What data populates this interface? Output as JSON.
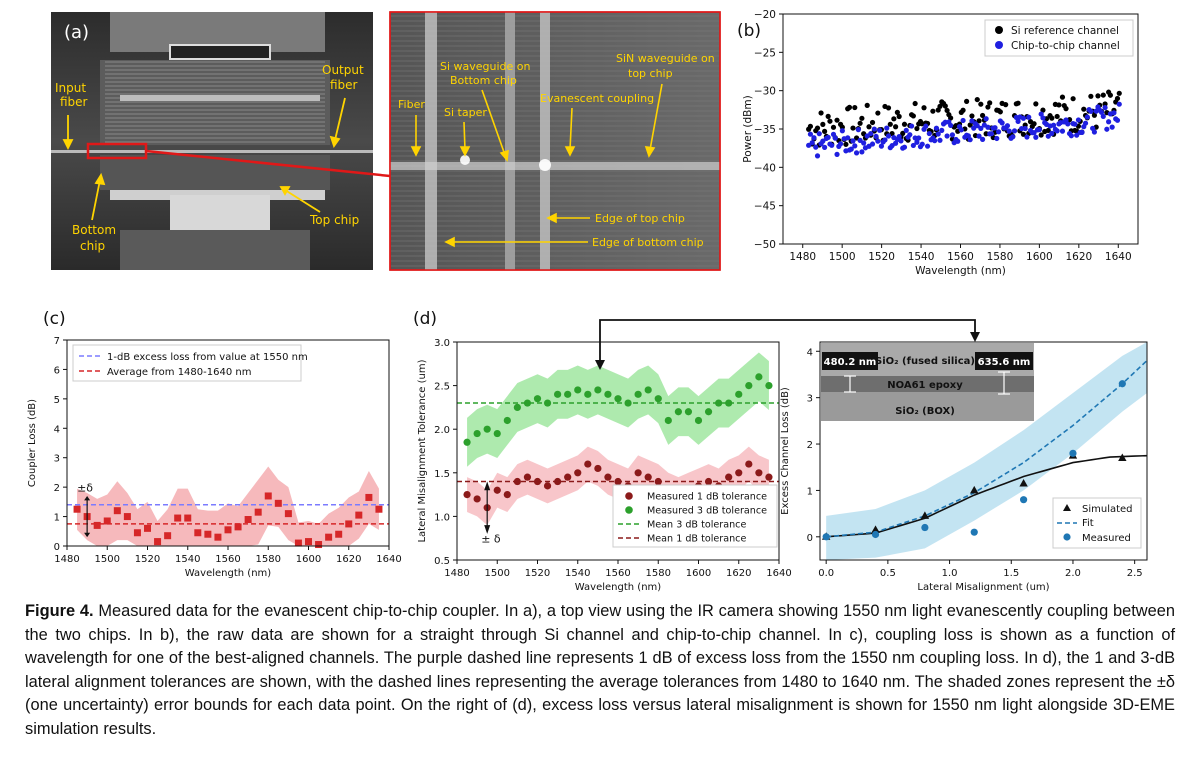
{
  "panel_a": {
    "label": "(a)",
    "annotations": {
      "input_fiber": [
        "Input",
        "fiber"
      ],
      "output_fiber": [
        "Output",
        "fiber"
      ],
      "bottom_chip": [
        "Bottom",
        "chip"
      ],
      "top_chip": "Top chip"
    },
    "zoom": {
      "fiber": "Fiber",
      "si_waveguide": [
        "Si waveguide on",
        "Bottom chip"
      ],
      "si_taper": "Si taper",
      "sin_waveguide": [
        "SiN waveguide on",
        "top chip"
      ],
      "evanescent": "Evanescent coupling",
      "edge_top": "Edge of top chip",
      "edge_bottom": "Edge of bottom chip"
    }
  },
  "chart_data": [
    {
      "id": "b",
      "type": "scatter",
      "panel_label": "(b)",
      "xlabel": "Wavelength (nm)",
      "ylabel": "Power (dBm)",
      "xlim": [
        1470,
        1650
      ],
      "ylim": [
        -50,
        -20
      ],
      "xticks": [
        1480,
        1500,
        1520,
        1540,
        1560,
        1580,
        1600,
        1620,
        1640
      ],
      "yticks": [
        -50,
        -45,
        -40,
        -35,
        -30,
        -25,
        -20
      ],
      "legend_position": "top-right",
      "series": [
        {
          "name": "Si reference channel",
          "color": "#000000",
          "x": [
            1482,
            1500,
            1520,
            1540,
            1560,
            1580,
            1600,
            1620,
            1640
          ],
          "y": [
            -35,
            -34.7,
            -34.3,
            -34,
            -33.8,
            -33.6,
            -33.2,
            -33,
            -32.5
          ],
          "spread": 2.6
        },
        {
          "name": "Chip-to-chip channel",
          "color": "#1f1fe0",
          "x": [
            1482,
            1500,
            1520,
            1540,
            1560,
            1580,
            1600,
            1620,
            1640
          ],
          "y": [
            -37.3,
            -36.8,
            -36.2,
            -35.8,
            -35.4,
            -35,
            -34.6,
            -34.2,
            -33.2
          ],
          "spread": 1.6
        }
      ]
    },
    {
      "id": "c",
      "type": "scatter",
      "panel_label": "(c)",
      "xlabel": "Wavelength (nm)",
      "ylabel": "Coupler Loss (dB)",
      "xlim": [
        1480,
        1640
      ],
      "ylim": [
        0,
        7
      ],
      "xticks": [
        1480,
        1500,
        1520,
        1540,
        1560,
        1580,
        1600,
        1620,
        1640
      ],
      "yticks": [
        0,
        1,
        2,
        3,
        4,
        5,
        6,
        7
      ],
      "legend_position": "top-left",
      "annotation": "±δ",
      "hlines": [
        {
          "name": "1-dB excess loss from value at 1550 nm",
          "y": 1.4,
          "color": "#7b7bff"
        },
        {
          "name": "Average from 1480-1640 nm",
          "y": 0.75,
          "color": "#d62728"
        }
      ],
      "series": [
        {
          "name": "Coupler loss",
          "color": "#d62728",
          "x": [
            1485,
            1490,
            1495,
            1500,
            1505,
            1510,
            1515,
            1520,
            1525,
            1530,
            1535,
            1540,
            1545,
            1550,
            1555,
            1560,
            1565,
            1570,
            1575,
            1580,
            1585,
            1590,
            1595,
            1600,
            1605,
            1610,
            1615,
            1620,
            1625,
            1630,
            1635
          ],
          "y": [
            1.25,
            1.0,
            0.7,
            0.85,
            1.2,
            1.0,
            0.45,
            0.6,
            0.15,
            0.35,
            0.95,
            0.95,
            0.45,
            0.4,
            0.3,
            0.55,
            0.65,
            0.9,
            1.15,
            1.7,
            1.45,
            1.1,
            0.1,
            0.15,
            0.05,
            0.3,
            0.4,
            0.75,
            1.05,
            1.65,
            1.25
          ],
          "err": [
            0.7,
            0.8,
            0.9,
            0.9,
            1.0,
            0.8,
            0.8,
            0.9,
            0.7,
            0.9,
            1.0,
            1.0,
            0.8,
            0.8,
            0.9,
            0.9,
            0.7,
            0.9,
            1.1,
            1.0,
            0.8,
            0.9,
            0.7,
            0.7,
            0.7,
            0.8,
            0.9,
            0.9,
            0.8,
            0.9,
            0.7
          ]
        }
      ]
    },
    {
      "id": "d_left",
      "type": "scatter",
      "panel_label": "(d)",
      "xlabel": "Wavelength (nm)",
      "ylabel": "Lateral Misalignment Tolerance (um)",
      "xlim": [
        1480,
        1640
      ],
      "ylim": [
        0.5,
        3.0
      ],
      "xticks": [
        1480,
        1500,
        1520,
        1540,
        1560,
        1580,
        1600,
        1620,
        1640
      ],
      "yticks": [
        0.5,
        1.0,
        1.5,
        2.0,
        2.5,
        3.0
      ],
      "legend_position": "bottom-right",
      "annotation": "± δ",
      "hlines": [
        {
          "name": "Mean 3 dB tolerance",
          "y": 2.3,
          "color": "#2ca02c"
        },
        {
          "name": "Mean 1 dB tolerance",
          "y": 1.4,
          "color": "#8b1a1a"
        }
      ],
      "series": [
        {
          "name": "Measured 1 dB tolerance",
          "color": "#8b1a1a",
          "x": [
            1485,
            1490,
            1495,
            1500,
            1505,
            1510,
            1515,
            1520,
            1525,
            1530,
            1535,
            1540,
            1545,
            1550,
            1555,
            1560,
            1565,
            1570,
            1575,
            1580,
            1585,
            1590,
            1595,
            1600,
            1605,
            1610,
            1615,
            1620,
            1625,
            1630,
            1635
          ],
          "y": [
            1.25,
            1.2,
            1.1,
            1.3,
            1.25,
            1.4,
            1.45,
            1.4,
            1.35,
            1.4,
            1.45,
            1.5,
            1.6,
            1.55,
            1.45,
            1.4,
            1.35,
            1.5,
            1.45,
            1.4,
            1.3,
            1.25,
            1.3,
            1.35,
            1.4,
            1.35,
            1.45,
            1.5,
            1.6,
            1.5,
            1.45
          ],
          "err": 0.2
        },
        {
          "name": "Measured 3 dB tolerance",
          "color": "#2ca02c",
          "x": [
            1485,
            1490,
            1495,
            1500,
            1505,
            1510,
            1515,
            1520,
            1525,
            1530,
            1535,
            1540,
            1545,
            1550,
            1555,
            1560,
            1565,
            1570,
            1575,
            1580,
            1585,
            1590,
            1595,
            1600,
            1605,
            1610,
            1615,
            1620,
            1625,
            1630,
            1635
          ],
          "y": [
            1.85,
            1.95,
            2.0,
            1.95,
            2.1,
            2.25,
            2.3,
            2.35,
            2.3,
            2.4,
            2.4,
            2.45,
            2.4,
            2.45,
            2.4,
            2.35,
            2.3,
            2.4,
            2.45,
            2.35,
            2.1,
            2.2,
            2.2,
            2.1,
            2.2,
            2.3,
            2.3,
            2.4,
            2.5,
            2.6,
            2.5
          ],
          "err": 0.28
        }
      ]
    },
    {
      "id": "d_right",
      "type": "scatter",
      "xlabel": "Lateral Misalignment (um)",
      "ylabel": "Excess Channel Loss (dB)",
      "xlim": [
        -0.05,
        2.6
      ],
      "ylim": [
        -0.5,
        4.2
      ],
      "xticks": [
        0.0,
        0.5,
        1.0,
        1.5,
        2.0,
        2.5
      ],
      "yticks": [
        0,
        1,
        2,
        3,
        4
      ],
      "legend_position": "bottom-right",
      "series": [
        {
          "name": "Simulated",
          "color": "#111111",
          "marker": "triangle",
          "x": [
            0.0,
            0.4,
            0.8,
            1.2,
            1.6,
            2.0,
            2.4
          ],
          "y": [
            0.0,
            0.15,
            0.45,
            1.0,
            1.15,
            1.75,
            1.7
          ]
        },
        {
          "name": "Fit",
          "color": "#1f77b4",
          "style": "dashed",
          "x": [
            0.0,
            0.4,
            0.8,
            1.2,
            1.6,
            2.0,
            2.4,
            2.6
          ],
          "y": [
            0.0,
            0.1,
            0.45,
            0.95,
            1.6,
            2.4,
            3.3,
            3.8
          ]
        },
        {
          "name": "Measured",
          "color": "#1f77b4",
          "marker": "circle",
          "x": [
            0.0,
            0.4,
            0.8,
            1.2,
            1.6,
            2.0,
            2.4
          ],
          "y": [
            0.0,
            0.05,
            0.2,
            0.1,
            0.8,
            1.8,
            3.3
          ]
        }
      ],
      "sim_curve": {
        "x": [
          0.0,
          0.4,
          0.8,
          1.2,
          1.6,
          2.0,
          2.3,
          2.6
        ],
        "y": [
          0.0,
          0.08,
          0.4,
          0.9,
          1.3,
          1.6,
          1.72,
          1.75
        ]
      },
      "band": {
        "x": [
          0.0,
          0.4,
          0.8,
          1.2,
          1.6,
          2.0,
          2.4,
          2.6
        ],
        "lo": [
          -0.5,
          -0.45,
          -0.25,
          0.35,
          1.0,
          1.8,
          2.7,
          3.1
        ],
        "hi": [
          0.45,
          0.6,
          1.0,
          1.6,
          2.3,
          3.1,
          3.9,
          4.2
        ]
      },
      "inset": {
        "left_dim": "480.2 nm",
        "right_dim": "635.6 nm",
        "layer_top": "SiO₂ (fused silica)",
        "layer_mid": "NOA61 epoxy",
        "layer_bot": "SiO₂ (BOX)"
      }
    }
  ],
  "caption": {
    "bold": "Figure 4.",
    "text": " Measured data for the evanescent chip-to-chip coupler. In a), a top view using the IR camera showing 1550 nm light evanescently coupling between the two chips. In b), the raw data are shown for a straight through Si channel and chip-to-chip channel. In c), coupling loss is shown as a function of wavelength for one of the best-aligned channels. The purple dashed line represents 1 dB of excess loss from the 1550 nm coupling loss. In d), the 1 and 3-dB lateral alignment tolerances are shown, with the dashed lines representing the average tolerances from 1480 to 1640 nm. The shaded zones represent the ±δ (one uncertainty) error bounds for each data point. On the right of (d), excess loss versus lateral misalignment is shown for 1550 nm light alongside 3D-EME simulation results."
  }
}
